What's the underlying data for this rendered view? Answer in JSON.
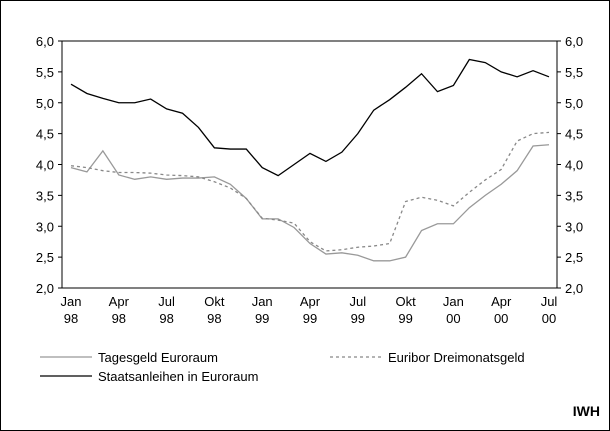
{
  "chart_data": {
    "type": "line",
    "categories": [
      "Jan 98",
      null,
      null,
      "Apr 98",
      null,
      null,
      "Jul 98",
      null,
      null,
      "Okt 98",
      null,
      null,
      "Jan 99",
      null,
      null,
      "Apr 99",
      null,
      null,
      "Jul 99",
      null,
      null,
      "Okt 99",
      null,
      null,
      "Jan 00",
      null,
      null,
      "Apr 00",
      null,
      null,
      "Jul 00"
    ],
    "series": [
      {
        "name": "Tagesgeld Euroraum",
        "color": "#999999",
        "dash": "solid",
        "values": [
          3.95,
          3.88,
          4.22,
          3.83,
          3.76,
          3.8,
          3.76,
          3.78,
          3.78,
          3.8,
          3.68,
          3.45,
          3.12,
          3.12,
          2.98,
          2.72,
          2.55,
          2.57,
          2.53,
          2.44,
          2.44,
          2.5,
          2.93,
          3.04,
          3.04,
          3.3,
          3.5,
          3.68,
          3.9,
          4.3,
          4.32
        ]
      },
      {
        "name": "Euribor Dreimonatsgeld",
        "color": "#888888",
        "dash": "dotted",
        "values": [
          3.98,
          3.95,
          3.9,
          3.87,
          3.87,
          3.86,
          3.83,
          3.82,
          3.8,
          3.72,
          3.62,
          3.45,
          3.13,
          3.1,
          3.05,
          2.75,
          2.6,
          2.62,
          2.66,
          2.68,
          2.72,
          3.4,
          3.47,
          3.42,
          3.33,
          3.55,
          3.75,
          3.92,
          4.38,
          4.5,
          4.52
        ]
      },
      {
        "name": "Staatsanleihen in Euroraum",
        "color": "#000000",
        "dash": "solid",
        "values": [
          5.3,
          5.15,
          5.07,
          5.0,
          5.0,
          5.06,
          4.9,
          4.83,
          4.6,
          4.27,
          4.25,
          4.25,
          3.95,
          3.82,
          4.0,
          4.18,
          4.05,
          4.2,
          4.5,
          4.88,
          5.05,
          5.25,
          5.47,
          5.18,
          5.28,
          5.7,
          5.65,
          5.5,
          5.42,
          5.52,
          5.42
        ]
      }
    ],
    "ylim": [
      2,
      6
    ],
    "yticks": [
      {
        "value": 2,
        "label": "2,0"
      },
      {
        "value": 2.5,
        "label": "2,5"
      },
      {
        "value": 3,
        "label": "3,0"
      },
      {
        "value": 3.5,
        "label": "3,5"
      },
      {
        "value": 4,
        "label": "4,0"
      },
      {
        "value": 4.5,
        "label": "4,5"
      },
      {
        "value": 5,
        "label": "5,0"
      },
      {
        "value": 5.5,
        "label": "5,5"
      },
      {
        "value": 6,
        "label": "6,0"
      }
    ],
    "y2lim": [
      2,
      6
    ],
    "y2ticks": [
      {
        "value": 2,
        "label": "2,0"
      },
      {
        "value": 2.5,
        "label": "2,5"
      },
      {
        "value": 3,
        "label": "3,0"
      },
      {
        "value": 3.5,
        "label": "3,5"
      },
      {
        "value": 4,
        "label": "4,0"
      },
      {
        "value": 4.5,
        "label": "4,5"
      },
      {
        "value": 5,
        "label": "5,0"
      },
      {
        "value": 5.5,
        "label": "5,5"
      },
      {
        "value": 6,
        "label": "6,0"
      }
    ],
    "grid": false,
    "source": "IWH"
  }
}
